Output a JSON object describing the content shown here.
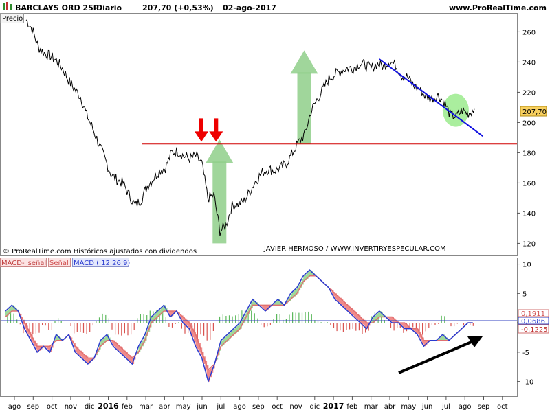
{
  "header": {
    "icon": "candlestick-icon",
    "instrument": "BARCLAYS ORD 25P",
    "period": "Diario",
    "last_quote": "207,70 (+0,53%)",
    "date": "02-ago-2017",
    "site": "www.ProRealTime.com"
  },
  "price_panel": {
    "label": "Precio",
    "watermark": "© ProRealTime.com  Históricos ajustados con dividendos",
    "credit": "JAVIER HERMOSO / WWW.INVERTIRYESPECULAR.COM",
    "last_value": "207,70"
  },
  "macd_panel": {
    "legend_histogram": "MACD-_señal",
    "legend_signal": "Señal",
    "legend_macd": "MACD ( 12 26 9)",
    "readout_signal": "0,1911",
    "readout_macd": "0,0686",
    "readout_histogram": "-0,1225"
  },
  "colors": {
    "price": "#000000",
    "horizontal_line": "#d00000",
    "trend_line": "#1010e0",
    "green_arrow": "#8fcf8a",
    "red_arrow": "#ee0000",
    "highlight_circle": "#8ee87e",
    "hist_positive": "#5cb85c",
    "hist_negative": "#d9534f",
    "macd_line": "#2a3bd0",
    "signal_line": "#e07070",
    "badge": "#f8d060"
  },
  "chart_data": [
    {
      "type": "line",
      "name": "price",
      "x_axis": {
        "ticks": [
          "ago",
          "sep",
          "oct",
          "nov",
          "dic",
          "2016",
          "feb",
          "mar",
          "abr",
          "may",
          "jun",
          "jul",
          "ago",
          "sep",
          "oct",
          "nov",
          "dic",
          "2017",
          "feb",
          "mar",
          "abr",
          "may",
          "jun",
          "jul",
          "ago",
          "sep",
          "oct"
        ]
      },
      "y_axis": {
        "ticks": [
          120,
          140,
          160,
          180,
          200,
          220,
          240,
          260
        ],
        "range": [
          112,
          272
        ]
      },
      "series": [
        {
          "values": [
            268,
            262,
            250,
            246,
            244,
            241,
            236,
            228,
            222,
            217,
            205,
            196,
            186,
            176,
            166,
            162,
            160,
            152,
            145,
            149,
            158,
            163,
            168,
            170,
            180,
            181,
            178,
            176,
            178,
            173,
            150,
            152,
            128,
            132,
            145,
            146,
            148,
            155,
            162,
            167,
            169,
            168,
            170,
            173,
            180,
            187,
            192,
            207,
            215,
            222,
            229,
            232,
            234,
            236,
            236,
            239,
            238,
            236,
            239,
            237,
            241,
            238,
            231,
            230,
            224,
            222,
            217,
            216,
            218,
            214,
            205,
            204,
            208,
            206,
            209
          ],
          "labels_shown": false
        }
      ],
      "annotations": [
        {
          "type": "horizontal_line",
          "y": 186
        },
        {
          "type": "trend_line",
          "from": [
            "2017-03",
            242
          ],
          "to": [
            "2017-08",
            191
          ]
        },
        {
          "type": "arrow_up",
          "color": "green",
          "at": "2016-07",
          "from": 120,
          "to": 186
        },
        {
          "type": "arrow_up",
          "color": "green",
          "at": "2016-11",
          "from": 186,
          "to": 245
        },
        {
          "type": "arrow_down",
          "color": "red",
          "at": "2016-06",
          "y": 190
        },
        {
          "type": "arrow_down",
          "color": "red",
          "at": "2016-07",
          "y": 190
        },
        {
          "type": "circle",
          "at": "2017-07",
          "y": 209
        }
      ],
      "last_value": 207.7
    },
    {
      "type": "bar",
      "name": "MACD",
      "y_axis": {
        "ticks": [
          -10,
          -5,
          0,
          5,
          10
        ],
        "range": [
          -12.5,
          11
        ]
      },
      "series": [
        {
          "name": "MACD",
          "values": [
            2,
            3,
            2,
            -1,
            -3,
            -5,
            -4,
            -5,
            -2,
            -3,
            -2,
            -5,
            -6,
            -7,
            -6,
            -3,
            -2,
            -4,
            -5,
            -6,
            -7,
            -4,
            -2,
            1,
            2,
            3,
            1,
            2,
            0,
            -1,
            -4,
            -6,
            -10,
            -7,
            -3,
            -2,
            -1,
            0,
            2,
            4,
            3,
            2,
            3,
            4,
            3,
            5,
            6,
            8,
            9,
            8,
            7,
            6,
            4,
            3,
            2,
            1,
            0,
            -1,
            1,
            2,
            1,
            0,
            0,
            -1,
            -1,
            -2,
            -4,
            -3,
            -3,
            -2,
            -3,
            -2,
            -1,
            0,
            0
          ]
        },
        {
          "name": "Señal",
          "values": [
            1,
            2,
            2,
            0,
            -2,
            -4,
            -4,
            -4,
            -3,
            -3,
            -2,
            -4,
            -5,
            -6,
            -6,
            -4,
            -3,
            -3,
            -4,
            -5,
            -6,
            -5,
            -3,
            0,
            1,
            2,
            2,
            2,
            1,
            0,
            -2,
            -5,
            -8,
            -7,
            -4,
            -3,
            -2,
            -1,
            1,
            3,
            3,
            3,
            3,
            3,
            3,
            4,
            5,
            7,
            8,
            8,
            7,
            6,
            5,
            4,
            3,
            2,
            1,
            0,
            0,
            1,
            1,
            1,
            0,
            0,
            -1,
            -1,
            -3,
            -3,
            -3,
            -3,
            -3,
            -2,
            -1,
            0,
            0
          ]
        },
        {
          "name": "MACD-_señal"
        }
      ],
      "readouts": {
        "signal": 0.1911,
        "macd": 0.0686,
        "histogram": -0.1225
      }
    }
  ]
}
